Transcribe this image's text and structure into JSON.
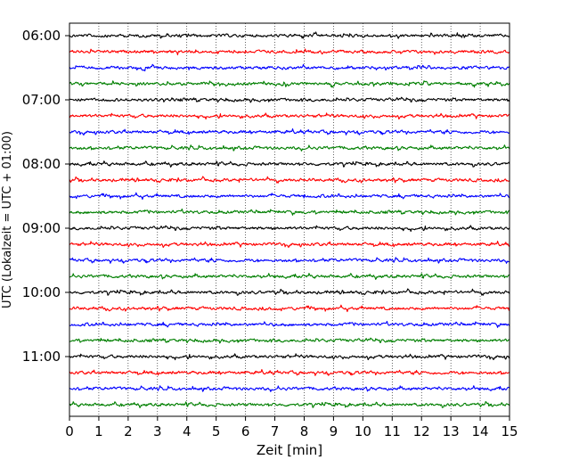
{
  "chart_data": {
    "type": "line",
    "title": "",
    "xlabel": "Zeit  [min]",
    "ylabel": "UTC (Lokalzeit = UTC + 01:00)",
    "xlim": [
      0,
      15
    ],
    "x_ticks": [
      0,
      1,
      2,
      3,
      4,
      5,
      6,
      7,
      8,
      9,
      10,
      11,
      12,
      13,
      14,
      15
    ],
    "x_tick_labels": [
      "0",
      "1",
      "2",
      "3",
      "4",
      "5",
      "6",
      "7",
      "8",
      "9",
      "10",
      "11",
      "12",
      "13",
      "14",
      "15"
    ],
    "y_tick_labels": [
      "06:00",
      "07:00",
      "08:00",
      "09:00",
      "10:00",
      "11:00"
    ],
    "vertical_grid": true,
    "grid_style": "dotted",
    "trace_interval_minutes": 15,
    "trace_colors": [
      "#000000",
      "#ff0000",
      "#0000ff",
      "#007f00"
    ],
    "traces": [
      {
        "start": "06:00",
        "color": "#000000"
      },
      {
        "start": "06:15",
        "color": "#ff0000"
      },
      {
        "start": "06:30",
        "color": "#0000ff"
      },
      {
        "start": "06:45",
        "color": "#007f00"
      },
      {
        "start": "07:00",
        "color": "#000000"
      },
      {
        "start": "07:15",
        "color": "#ff0000"
      },
      {
        "start": "07:30",
        "color": "#0000ff"
      },
      {
        "start": "07:45",
        "color": "#007f00"
      },
      {
        "start": "08:00",
        "color": "#000000"
      },
      {
        "start": "08:15",
        "color": "#ff0000"
      },
      {
        "start": "08:30",
        "color": "#0000ff"
      },
      {
        "start": "08:45",
        "color": "#007f00"
      },
      {
        "start": "09:00",
        "color": "#000000"
      },
      {
        "start": "09:15",
        "color": "#ff0000"
      },
      {
        "start": "09:30",
        "color": "#0000ff"
      },
      {
        "start": "09:45",
        "color": "#007f00"
      },
      {
        "start": "10:00",
        "color": "#000000"
      },
      {
        "start": "10:15",
        "color": "#ff0000"
      },
      {
        "start": "10:30",
        "color": "#0000ff"
      },
      {
        "start": "10:45",
        "color": "#007f00"
      },
      {
        "start": "11:00",
        "color": "#000000"
      },
      {
        "start": "11:15",
        "color": "#ff0000"
      },
      {
        "start": "11:30",
        "color": "#0000ff"
      },
      {
        "start": "11:45",
        "color": "#007f00"
      }
    ]
  }
}
